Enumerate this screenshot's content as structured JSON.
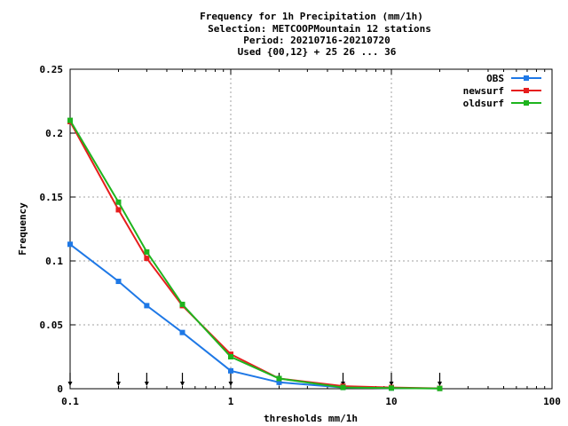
{
  "chart_data": {
    "type": "line",
    "title_lines": [
      "Frequency  for 1h Precipitation (mm/1h)",
      "Selection: METCOOPMountain     12 stations",
      "Period: 20210716-20210720",
      "Used {00,12} + 25 26 ... 36"
    ],
    "xlabel": "thresholds mm/1h",
    "ylabel": "Frequency",
    "x_scale": "log",
    "xlim": [
      0.1,
      100
    ],
    "ylim": [
      0,
      0.25
    ],
    "x_ticks": [
      0.1,
      1,
      10,
      100
    ],
    "x_tick_labels": [
      "0.1",
      "1",
      "10",
      "100"
    ],
    "y_ticks": [
      0,
      0.05,
      0.1,
      0.15,
      0.2,
      0.25
    ],
    "y_tick_labels": [
      "0",
      "0.05",
      "0.1",
      "0.15",
      "0.2",
      "0.25"
    ],
    "grid": true,
    "legend_position": "top-right",
    "threshold_arrows": [
      0.1,
      0.2,
      0.3,
      0.5,
      1,
      2,
      5,
      10,
      20
    ],
    "x": [
      0.1,
      0.2,
      0.3,
      0.5,
      1,
      2,
      5,
      10,
      20
    ],
    "series": [
      {
        "name": "OBS",
        "color": "#1e78e6",
        "values": [
          0.113,
          0.084,
          0.065,
          0.044,
          0.014,
          0.005,
          0.001,
          0.0005,
          0.0003
        ]
      },
      {
        "name": "newsurf",
        "color": "#e61e1e",
        "values": [
          0.209,
          0.14,
          0.102,
          0.065,
          0.027,
          0.008,
          0.002,
          0.001,
          0.0003
        ]
      },
      {
        "name": "oldsurf",
        "color": "#1eb41e",
        "values": [
          0.21,
          0.146,
          0.107,
          0.066,
          0.025,
          0.008,
          0.001,
          0.0005,
          0.0002
        ]
      }
    ]
  }
}
